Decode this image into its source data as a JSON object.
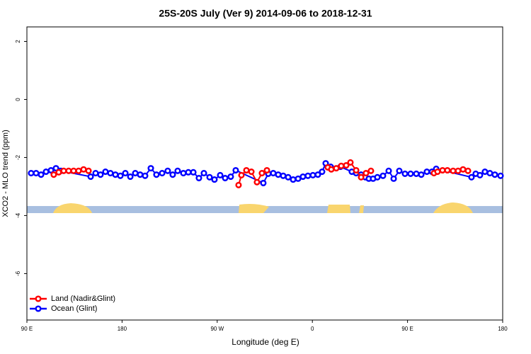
{
  "chart_data": {
    "type": "scatter",
    "title": "25S-20S July (Ver 9)   2014-09-06 to 2018-12-31",
    "x_label": "Longitude (deg E)",
    "y_label": "XCO2 - MLO trend (ppm)",
    "xlim": [
      90,
      540
    ],
    "ylim": [
      -7.6,
      2.5
    ],
    "xticks": [
      90,
      180,
      {
        "value": 270,
        "label": "90 W"
      },
      {
        "value": 360,
        "label": "0"
      },
      {
        "value": 450,
        "label": "90 E"
      },
      {
        "value": 540,
        "label": "180"
      }
    ],
    "xticks_first_label": "90 E",
    "yticks": [
      2,
      0,
      -2,
      -4,
      -6
    ],
    "legend": "bottom-left",
    "series": [
      {
        "name": "Ocean (Glint)",
        "color": "#0000ff",
        "x": [
          94.0,
          98.7,
          103.4,
          108.1,
          112.8,
          117.5,
          122.1,
          150.3,
          155.0,
          159.6,
          164.3,
          169.0,
          173.7,
          178.4,
          183.1,
          187.8,
          192.5,
          197.1,
          201.8,
          207.2,
          212.5,
          217.9,
          223.2,
          227.9,
          232.6,
          238.0,
          242.7,
          247.4,
          252.7,
          257.4,
          262.8,
          267.4,
          272.8,
          277.5,
          282.8,
          287.5,
          313.6,
          318.3,
          323.0,
          327.7,
          332.4,
          337.1,
          341.8,
          346.5,
          351.1,
          355.8,
          360.5,
          365.2,
          369.2,
          372.6,
          377.3,
          386.6,
          397.3,
          401.4,
          406.1,
          410.1,
          413.4,
          417.4,
          421.5,
          426.8,
          432.2,
          436.9,
          442.2,
          447.6,
          452.9,
          458.3,
          463.0,
          468.3,
          473.1,
          477.1,
          510.5,
          514.5,
          518.5,
          523.2,
          527.9,
          532.6,
          538.0
        ],
        "values": [
          -2.54,
          -2.54,
          -2.59,
          -2.49,
          -2.44,
          -2.37,
          -2.46,
          -2.66,
          -2.54,
          -2.59,
          -2.49,
          -2.54,
          -2.59,
          -2.63,
          -2.54,
          -2.66,
          -2.54,
          -2.59,
          -2.63,
          -2.37,
          -2.59,
          -2.54,
          -2.46,
          -2.59,
          -2.46,
          -2.54,
          -2.51,
          -2.51,
          -2.71,
          -2.54,
          -2.68,
          -2.76,
          -2.61,
          -2.71,
          -2.66,
          -2.44,
          -2.88,
          -2.56,
          -2.54,
          -2.59,
          -2.63,
          -2.68,
          -2.76,
          -2.73,
          -2.66,
          -2.63,
          -2.61,
          -2.59,
          -2.49,
          -2.2,
          -2.32,
          -2.32,
          -2.49,
          -2.54,
          -2.59,
          -2.68,
          -2.73,
          -2.73,
          -2.68,
          -2.63,
          -2.46,
          -2.73,
          -2.46,
          -2.56,
          -2.56,
          -2.56,
          -2.59,
          -2.49,
          -2.49,
          -2.39,
          -2.68,
          -2.56,
          -2.61,
          -2.49,
          -2.54,
          -2.59,
          -2.63
        ]
      },
      {
        "name": "Land (Nadir&Glint)",
        "color": "#ff0000",
        "x": [
          115.4,
          120.1,
          124.8,
          129.5,
          134.2,
          138.9,
          143.6,
          148.3,
          200,
          290.2,
          292.9,
          297.6,
          302.3,
          307.6,
          312.3,
          317.0,
          350,
          374.6,
          377.9,
          382.6,
          387.3,
          392.0,
          396.0,
          401.4,
          406.1,
          410.7,
          415.4,
          450,
          475.0,
          478.4,
          483.1,
          487.7,
          493.1,
          497.8,
          502.5,
          507.2
        ],
        "values": [
          -2.59,
          -2.51,
          -2.46,
          -2.46,
          -2.46,
          -2.46,
          -2.41,
          -2.46,
          null,
          -2.95,
          -2.61,
          -2.44,
          -2.49,
          -2.85,
          -2.54,
          -2.44,
          null,
          -2.34,
          -2.41,
          -2.37,
          -2.29,
          -2.27,
          -2.17,
          -2.44,
          -2.68,
          -2.54,
          -2.46,
          null,
          -2.54,
          -2.49,
          -2.44,
          -2.44,
          -2.46,
          -2.46,
          -2.41,
          -2.46
        ]
      }
    ]
  }
}
